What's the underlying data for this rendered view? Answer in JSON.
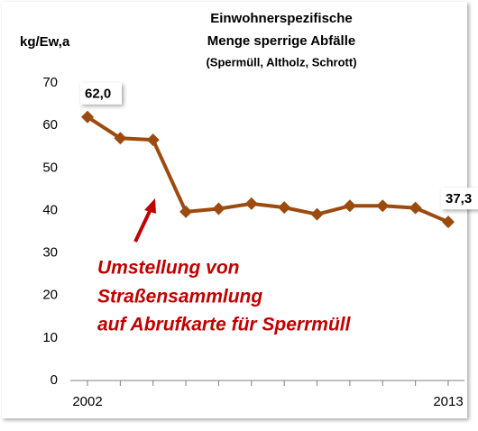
{
  "chart_data": {
    "type": "line",
    "title": [
      "Einwohnerspezifische",
      "Menge sperrige Abfälle"
    ],
    "subtitle": "(Spermüll, Altholz, Schrott)",
    "y_label": "kg/Ew,a",
    "annotation": [
      "Umstellung von",
      "Straßensammlung",
      "auf Abrufkarte für Sperrmüll"
    ],
    "x": [
      2002,
      2003,
      2004,
      2005,
      2006,
      2007,
      2008,
      2009,
      2010,
      2011,
      2012,
      2013
    ],
    "xlim": [
      2002,
      2013
    ],
    "xticks": [
      2002,
      2013
    ],
    "series": [
      {
        "name": "Sperrige Abfälle",
        "color": "#9c4a0e",
        "values": [
          62.0,
          57.0,
          56.6,
          39.7,
          40.4,
          41.6,
          40.7,
          39.1,
          41.1,
          41.1,
          40.6,
          37.3
        ],
        "value_labels": [
          "62,0",
          null,
          null,
          null,
          null,
          null,
          null,
          null,
          null,
          null,
          null,
          "37,3"
        ]
      }
    ],
    "ylim": [
      0,
      70
    ],
    "yticks": [
      0,
      10,
      20,
      30,
      40,
      50,
      60,
      70
    ],
    "grid": false
  }
}
